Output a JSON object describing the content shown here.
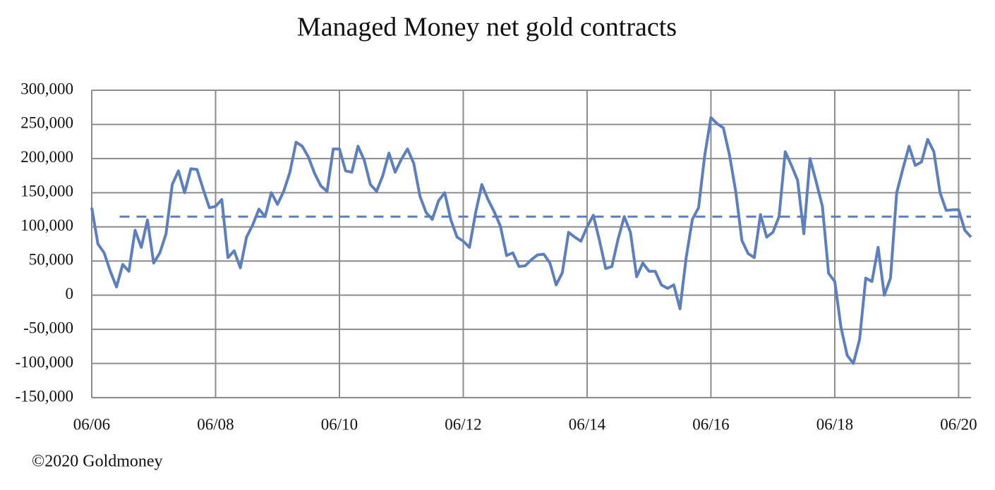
{
  "chart_data": {
    "type": "line",
    "title": "Managed Money net gold contracts",
    "source": "©2020 Goldmoney",
    "color": "#5b7fbf",
    "grid": true,
    "xlim": [
      2006.5,
      2020.7
    ],
    "xticks": [
      {
        "value": 2006.5,
        "label": "06/06"
      },
      {
        "value": 2008.5,
        "label": "06/08"
      },
      {
        "value": 2010.5,
        "label": "06/10"
      },
      {
        "value": 2012.5,
        "label": "06/12"
      },
      {
        "value": 2014.5,
        "label": "06/14"
      },
      {
        "value": 2016.5,
        "label": "06/16"
      },
      {
        "value": 2018.5,
        "label": "06/18"
      },
      {
        "value": 2020.5,
        "label": "06/20"
      }
    ],
    "ylim": [
      -150000,
      300000
    ],
    "yticks": [
      {
        "value": -150000,
        "label": "-150,000"
      },
      {
        "value": -100000,
        "label": "-100,000"
      },
      {
        "value": -50000,
        "label": "-50,000"
      },
      0,
      {
        "value": 50000,
        "label": "50,000"
      },
      {
        "value": 100000,
        "label": "100,000"
      },
      {
        "value": 150000,
        "label": "150,000"
      },
      {
        "value": 200000,
        "label": "200,000"
      },
      {
        "value": 250000,
        "label": "250,000"
      },
      {
        "value": 300000,
        "label": "300,000"
      }
    ],
    "reference_line": {
      "y": 115000,
      "x_start": 2006.95
    },
    "x": [
      2006.5,
      2006.6,
      2006.7,
      2006.8,
      2006.9,
      2007.0,
      2007.1,
      2007.2,
      2007.3,
      2007.4,
      2007.5,
      2007.6,
      2007.7,
      2007.8,
      2007.9,
      2008.0,
      2008.1,
      2008.2,
      2008.3,
      2008.4,
      2008.5,
      2008.6,
      2008.7,
      2008.8,
      2008.9,
      2009.0,
      2009.1,
      2009.2,
      2009.3,
      2009.4,
      2009.5,
      2009.6,
      2009.7,
      2009.8,
      2009.9,
      2010.0,
      2010.1,
      2010.2,
      2010.3,
      2010.4,
      2010.5,
      2010.6,
      2010.7,
      2010.8,
      2010.9,
      2011.0,
      2011.1,
      2011.2,
      2011.3,
      2011.4,
      2011.5,
      2011.6,
      2011.7,
      2011.8,
      2011.9,
      2012.0,
      2012.1,
      2012.2,
      2012.3,
      2012.4,
      2012.5,
      2012.6,
      2012.7,
      2012.8,
      2012.9,
      2013.0,
      2013.1,
      2013.2,
      2013.3,
      2013.4,
      2013.5,
      2013.6,
      2013.7,
      2013.8,
      2013.9,
      2014.0,
      2014.1,
      2014.2,
      2014.3,
      2014.4,
      2014.5,
      2014.6,
      2014.7,
      2014.8,
      2014.9,
      2015.0,
      2015.1,
      2015.2,
      2015.3,
      2015.4,
      2015.5,
      2015.6,
      2015.7,
      2015.8,
      2015.9,
      2016.0,
      2016.1,
      2016.2,
      2016.3,
      2016.4,
      2016.5,
      2016.6,
      2016.7,
      2016.8,
      2016.9,
      2017.0,
      2017.1,
      2017.2,
      2017.3,
      2017.4,
      2017.5,
      2017.6,
      2017.7,
      2017.8,
      2017.9,
      2018.0,
      2018.1,
      2018.2,
      2018.3,
      2018.4,
      2018.5,
      2018.6,
      2018.7,
      2018.8,
      2018.9,
      2019.0,
      2019.1,
      2019.2,
      2019.3,
      2019.4,
      2019.5,
      2019.6,
      2019.7,
      2019.8,
      2019.9,
      2020.0,
      2020.1,
      2020.2,
      2020.3,
      2020.4,
      2020.5,
      2020.6,
      2020.7
    ],
    "values": [
      128000,
      75000,
      62000,
      35000,
      12000,
      45000,
      35000,
      95000,
      70000,
      110000,
      47000,
      62000,
      90000,
      162000,
      182000,
      150000,
      185000,
      184000,
      155000,
      128000,
      130000,
      140000,
      55000,
      65000,
      40000,
      85000,
      103000,
      126000,
      115000,
      150000,
      133000,
      152000,
      180000,
      224000,
      218000,
      202000,
      178000,
      160000,
      152000,
      214000,
      214000,
      182000,
      180000,
      218000,
      198000,
      162000,
      152000,
      175000,
      208000,
      180000,
      199000,
      214000,
      193000,
      145000,
      121000,
      111000,
      138000,
      150000,
      110000,
      85000,
      79000,
      70000,
      121000,
      162000,
      140000,
      122000,
      101000,
      58000,
      62000,
      42000,
      43000,
      52000,
      59000,
      60000,
      47000,
      15000,
      33000,
      92000,
      85000,
      79000,
      100000,
      117000,
      80000,
      39000,
      42000,
      82000,
      115000,
      92000,
      27000,
      47000,
      35000,
      35000,
      15000,
      10000,
      15000,
      -20000,
      55000,
      111000,
      128000,
      205000,
      260000,
      251000,
      245000,
      205000,
      152000,
      80000,
      61000,
      55000,
      118000,
      85000,
      92000,
      115000,
      210000,
      190000,
      168000,
      90000,
      200000,
      166000,
      130000,
      32000,
      20000,
      -47000,
      -88000,
      -100000,
      -65000,
      25000,
      20000,
      70000,
      0,
      25000,
      150000,
      185000,
      218000,
      190000,
      195000,
      228000,
      210000,
      150000,
      124000,
      125000,
      125000,
      95000,
      85000
    ]
  }
}
